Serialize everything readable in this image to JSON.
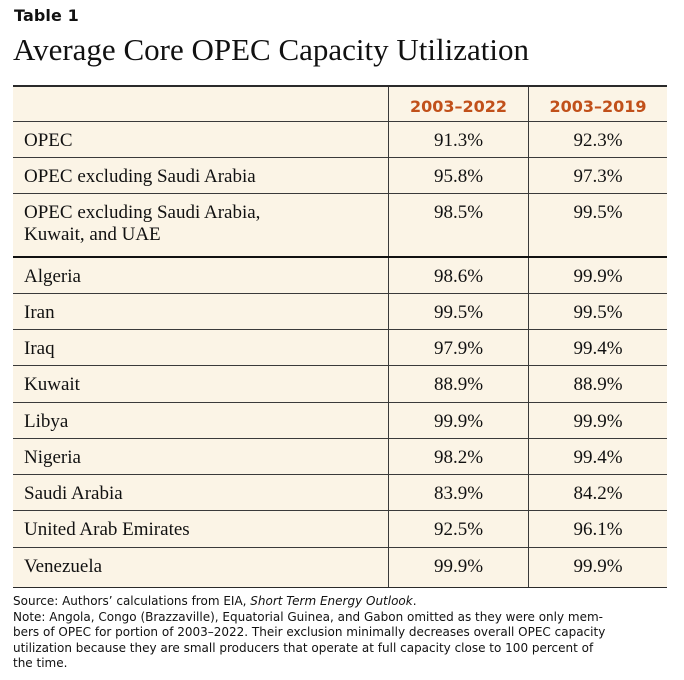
{
  "label": "Table 1",
  "title": "Average Core OPEC Capacity Utilization",
  "table": {
    "columns": [
      "",
      "2003–2022",
      "2003–2019"
    ],
    "rows": [
      {
        "name": "OPEC",
        "v1": "91.3%",
        "v2": "92.3%"
      },
      {
        "name": "OPEC excluding Saudi Arabia",
        "v1": "95.8%",
        "v2": "97.3%"
      },
      {
        "name_line1": "OPEC excluding Saudi Arabia,",
        "name_line2": "Kuwait, and UAE",
        "v1": "98.5%",
        "v2": "99.5%"
      },
      {
        "name": "Algeria",
        "v1": "98.6%",
        "v2": "99.9%"
      },
      {
        "name": "Iran",
        "v1": "99.5%",
        "v2": "99.5%"
      },
      {
        "name": "Iraq",
        "v1": "97.9%",
        "v2": "99.4%"
      },
      {
        "name": "Kuwait",
        "v1": "88.9%",
        "v2": "88.9%"
      },
      {
        "name": "Libya",
        "v1": "99.9%",
        "v2": "99.9%"
      },
      {
        "name": "Nigeria",
        "v1": "98.2%",
        "v2": "99.4%"
      },
      {
        "name": "Saudi Arabia",
        "v1": "83.9%",
        "v2": "84.2%"
      },
      {
        "name": "United Arab Emirates",
        "v1": "92.5%",
        "v2": "96.1%"
      },
      {
        "name": "Venezuela",
        "v1": "99.9%",
        "v2": "99.9%"
      }
    ]
  },
  "footer": {
    "source_prefix": "Source: Authors’ calculations from EIA, ",
    "source_title": "Short Term Energy Outlook",
    "source_suffix": ".",
    "note_line1": "Note: Angola, Congo (Brazzaville), Equatorial Guinea, and Gabon omitted as they were only mem-",
    "note_line2": "bers of OPEC for portion of 2003–2022. Their exclusion minimally decreases overall OPEC capacity",
    "note_line3": "utilization because they are small producers that operate at full capacity close to 100 percent of",
    "note_line4": "the time."
  },
  "colors": {
    "header_accent": "#c1501a",
    "table_background": "#fbf4e6"
  }
}
